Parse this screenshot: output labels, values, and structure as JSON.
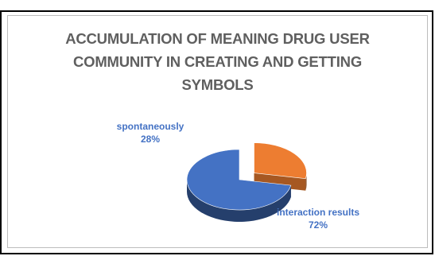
{
  "caption_fragment": "",
  "chart_data": {
    "type": "pie",
    "title_lines": [
      "ACCUMULATION OF MEANING DRUG USER",
      "COMMUNITY IN CREATING AND GETTING",
      "SYMBOLS"
    ],
    "slices": [
      {
        "label": "spontaneously",
        "value_label": "28%",
        "value": 28,
        "color": "#ed7d31",
        "exploded": true
      },
      {
        "label": "interaction results",
        "value_label": "72%",
        "value": 72,
        "color": "#4472c4",
        "exploded": false
      }
    ],
    "legend": "none",
    "data_labels": "outside",
    "style": "3d"
  }
}
